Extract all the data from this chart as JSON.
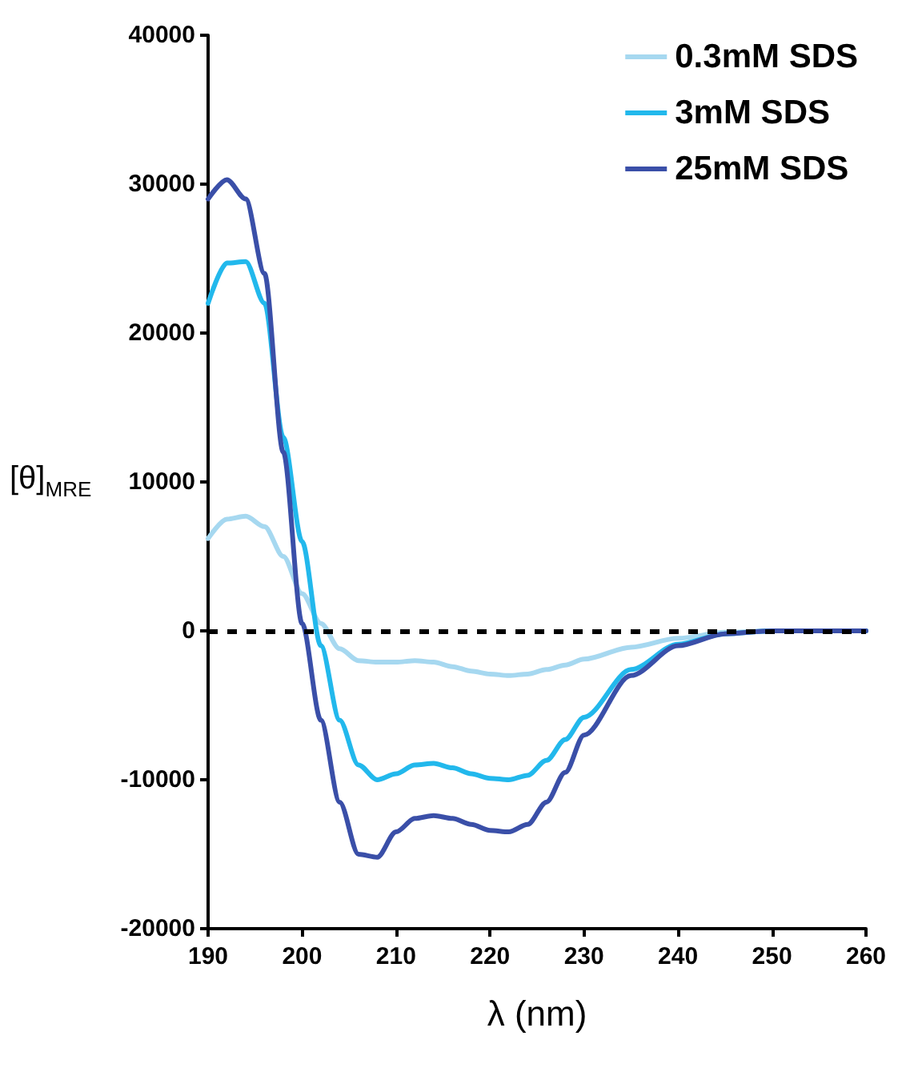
{
  "chart_data": {
    "type": "line",
    "xlabel": "λ (nm)",
    "ylabel": "[θ]$_{MRE}$",
    "x": [
      190,
      192,
      194,
      196,
      198,
      200,
      202,
      204,
      206,
      208,
      210,
      212,
      214,
      216,
      218,
      220,
      222,
      224,
      226,
      228,
      230,
      235,
      240,
      245,
      250,
      255,
      260
    ],
    "series": [
      {
        "name": "0.3mM SDS",
        "color": "#a6d8f0",
        "values": [
          6200,
          7500,
          7700,
          7000,
          5000,
          2500,
          500,
          -1200,
          -2000,
          -2100,
          -2100,
          -2000,
          -2100,
          -2400,
          -2700,
          -2900,
          -3000,
          -2900,
          -2600,
          -2300,
          -1900,
          -1100,
          -500,
          -100,
          0,
          0,
          0
        ]
      },
      {
        "name": "3mM SDS",
        "color": "#22b8ec",
        "values": [
          22000,
          24700,
          24800,
          22000,
          13000,
          6000,
          -1000,
          -6000,
          -9000,
          -10000,
          -9600,
          -9000,
          -8900,
          -9200,
          -9600,
          -9900,
          -10000,
          -9700,
          -8700,
          -7300,
          -5800,
          -2600,
          -900,
          -200,
          0,
          0,
          0
        ]
      },
      {
        "name": "25mM SDS",
        "color": "#3a4fa8",
        "values": [
          29000,
          30300,
          29000,
          24000,
          12000,
          500,
          -6000,
          -11500,
          -15000,
          -15200,
          -13500,
          -12600,
          -12400,
          -12600,
          -13000,
          -13400,
          -13500,
          -13000,
          -11500,
          -9500,
          -7000,
          -3000,
          -1000,
          -200,
          0,
          0,
          0
        ]
      }
    ],
    "xlim": [
      190,
      260
    ],
    "xticks": [
      190,
      200,
      210,
      220,
      230,
      240,
      250,
      260
    ],
    "ylim": [
      -20000,
      40000
    ],
    "yticks": [
      -20000,
      -10000,
      0,
      10000,
      20000,
      30000,
      40000
    ],
    "ref_lines": [
      {
        "axis": "y",
        "value": 0,
        "color": "#000000",
        "line_style": "dashed"
      }
    ],
    "grid": false,
    "legend": "top right",
    "marker": "none",
    "line_style": "solid"
  }
}
